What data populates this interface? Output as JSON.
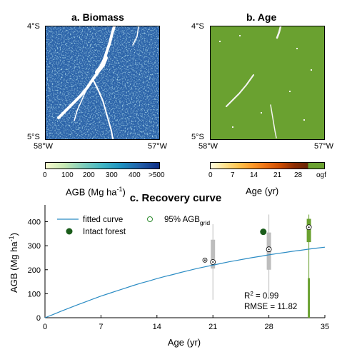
{
  "panel_a": {
    "title": "a. Biomass",
    "y_ticks": [
      "4°S",
      "5°S"
    ],
    "x_ticks": [
      "58°W",
      "57°W"
    ],
    "colorbar": {
      "ticks": [
        "0",
        "100",
        "200",
        "300",
        "400",
        ">500"
      ],
      "label_main": "AGB (Mg ha",
      "label_sup": "-1",
      "label_end": ")",
      "colors": [
        "#f7fbcf",
        "#c7e9b4",
        "#7fcdbb",
        "#41b6c4",
        "#1d91c0",
        "#225ea8",
        "#0c2c84"
      ]
    }
  },
  "panel_b": {
    "title": "b. Age",
    "y_ticks": [
      "4°S",
      "5°S"
    ],
    "x_ticks": [
      "58°W",
      "57°W"
    ],
    "colorbar": {
      "ticks": [
        "0",
        "7",
        "14",
        "21",
        "28",
        "ogf"
      ],
      "label": "Age (yr)",
      "colors": [
        "#fffde0",
        "#fee391",
        "#fec44f",
        "#fe9929",
        "#ec7014",
        "#cc4c02",
        "#8c2d04",
        "#662506"
      ],
      "ogf_color": "#6aa130"
    }
  },
  "chart_data": {
    "type": "line",
    "title": "c. Recovery curve",
    "xlabel": "Age (yr)",
    "ylabel_main": "AGB (Mg ha",
    "ylabel_sup": "-1",
    "ylabel_end": ")",
    "xlim": [
      0,
      35
    ],
    "ylim": [
      0,
      470
    ],
    "xticks": [
      0,
      7,
      14,
      21,
      28,
      35
    ],
    "yticks": [
      0,
      100,
      200,
      300,
      400
    ],
    "grid": false,
    "legend_position": "top-left",
    "legend": {
      "fitted": "fitted curve",
      "intact": "Intact forest",
      "agb_main": "95% AGB",
      "agb_sub": "grid"
    },
    "fitted_curve": {
      "x": [
        0,
        1,
        2,
        3,
        4,
        5,
        6,
        7,
        8,
        9,
        10,
        11,
        12,
        13,
        14,
        15,
        16,
        17,
        18,
        19,
        20,
        21,
        22,
        23,
        24,
        25,
        26,
        27,
        28,
        29,
        30,
        31,
        32,
        33,
        34,
        35
      ],
      "y": [
        0,
        13,
        27,
        40,
        53,
        65,
        78,
        90,
        101,
        112,
        123,
        134,
        144,
        153,
        163,
        172,
        180,
        189,
        197,
        205,
        212,
        219,
        226,
        233,
        239,
        245,
        251,
        256,
        262,
        267,
        272,
        277,
        281,
        286,
        290,
        294
      ],
      "color": "#2b8cc4"
    },
    "boxplots": [
      {
        "x": 21,
        "whisker_low": 75,
        "q1": 205,
        "median": 232,
        "q3": 325,
        "whisker_high": 390,
        "color": "#bdbdbd"
      },
      {
        "x": 28,
        "whisker_low": 80,
        "q1": 200,
        "median": 285,
        "q3": 355,
        "whisker_high": 430,
        "color": "#bdbdbd"
      },
      {
        "x": 33,
        "whisker_low": 0,
        "q1": 315,
        "median": 377,
        "q3": 412,
        "whisker_high": 430,
        "color": "#6aa130"
      }
    ],
    "agb95_points": [
      {
        "x": 20,
        "y": 240
      }
    ],
    "intact_forest": [
      {
        "x": 27.3,
        "y": 358
      }
    ],
    "agb_color": "#2e8b2e",
    "intact_color": "#1a5c1a",
    "annotation": {
      "r2_main": "R",
      "r2_sup": "2",
      "r2_val": " = 0.99",
      "rmse": "RMSE = 11.82"
    }
  }
}
